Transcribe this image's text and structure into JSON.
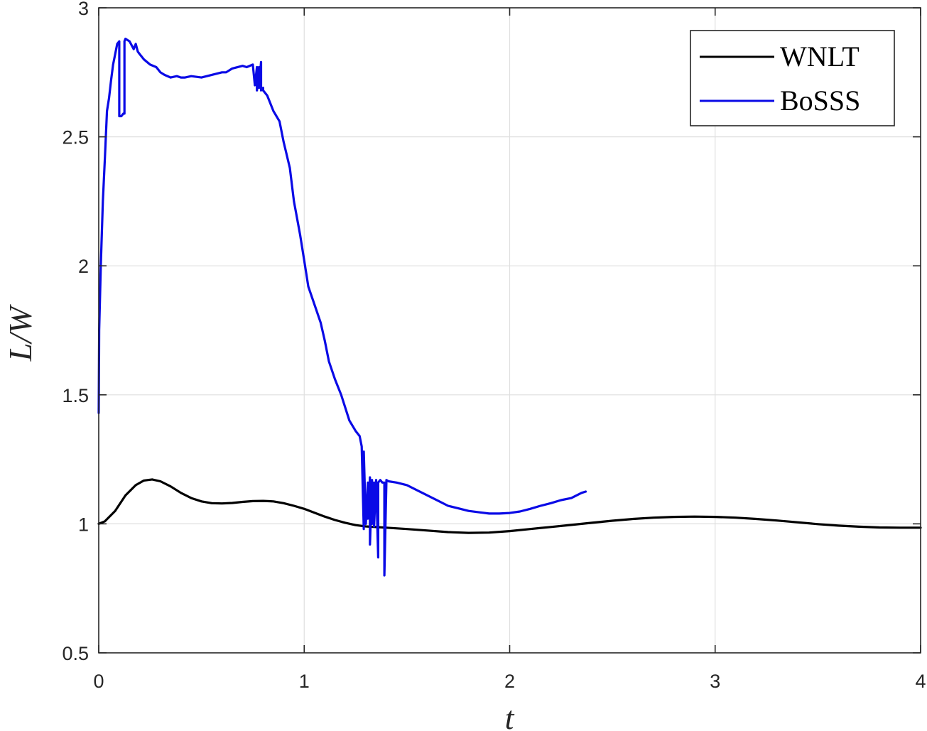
{
  "chart_data": {
    "type": "line",
    "xlabel": "t",
    "ylabel": "L/W",
    "xlim": [
      0,
      4
    ],
    "ylim": [
      0.5,
      3
    ],
    "xticks": [
      "0",
      "1",
      "2",
      "3",
      "4"
    ],
    "yticks": [
      "0.5",
      "1",
      "1.5",
      "2",
      "2.5",
      "3"
    ],
    "grid": true,
    "legend_position": "top-right",
    "series": [
      {
        "name": "WNLT",
        "color": "#000000",
        "x": [
          0,
          0.03,
          0.08,
          0.13,
          0.18,
          0.22,
          0.26,
          0.3,
          0.35,
          0.4,
          0.45,
          0.5,
          0.55,
          0.6,
          0.65,
          0.7,
          0.75,
          0.8,
          0.85,
          0.9,
          0.95,
          1.0,
          1.05,
          1.1,
          1.15,
          1.2,
          1.25,
          1.3,
          1.4,
          1.5,
          1.6,
          1.7,
          1.8,
          1.9,
          2.0,
          2.1,
          2.2,
          2.3,
          2.4,
          2.5,
          2.6,
          2.7,
          2.8,
          2.9,
          3.0,
          3.1,
          3.2,
          3.3,
          3.4,
          3.5,
          3.6,
          3.7,
          3.8,
          3.9,
          4.0
        ],
        "y": [
          1.0,
          1.01,
          1.05,
          1.11,
          1.15,
          1.168,
          1.172,
          1.165,
          1.145,
          1.12,
          1.1,
          1.087,
          1.08,
          1.079,
          1.081,
          1.085,
          1.088,
          1.089,
          1.087,
          1.08,
          1.07,
          1.058,
          1.043,
          1.028,
          1.015,
          1.004,
          0.995,
          0.99,
          0.985,
          0.98,
          0.974,
          0.968,
          0.965,
          0.966,
          0.972,
          0.98,
          0.988,
          0.996,
          1.004,
          1.012,
          1.019,
          1.024,
          1.027,
          1.028,
          1.027,
          1.024,
          1.019,
          1.013,
          1.006,
          0.999,
          0.993,
          0.989,
          0.986,
          0.985,
          0.985
        ]
      },
      {
        "name": "BoSSS",
        "color": "#0a0ae6",
        "x": [
          0.0,
          0.002,
          0.01,
          0.02,
          0.03,
          0.04,
          0.05,
          0.06,
          0.07,
          0.08,
          0.09,
          0.1,
          0.1,
          0.105,
          0.11,
          0.12,
          0.125,
          0.125,
          0.13,
          0.15,
          0.17,
          0.18,
          0.19,
          0.2,
          0.22,
          0.25,
          0.28,
          0.3,
          0.32,
          0.35,
          0.38,
          0.4,
          0.42,
          0.45,
          0.5,
          0.55,
          0.6,
          0.62,
          0.65,
          0.7,
          0.72,
          0.75,
          0.76,
          0.77,
          0.77,
          0.78,
          0.78,
          0.79,
          0.79,
          0.8,
          0.8,
          0.82,
          0.85,
          0.88,
          0.9,
          0.93,
          0.95,
          0.98,
          1.0,
          1.02,
          1.05,
          1.08,
          1.1,
          1.12,
          1.15,
          1.18,
          1.2,
          1.22,
          1.25,
          1.27,
          1.28,
          1.29,
          1.29,
          1.3,
          1.31,
          1.31,
          1.32,
          1.32,
          1.33,
          1.33,
          1.34,
          1.34,
          1.35,
          1.36,
          1.36,
          1.37,
          1.38,
          1.39,
          1.39,
          1.4,
          1.41,
          1.41,
          1.45,
          1.5,
          1.55,
          1.6,
          1.65,
          1.7,
          1.75,
          1.8,
          1.85,
          1.9,
          1.95,
          2.0,
          2.05,
          2.1,
          2.15,
          2.2,
          2.25,
          2.3,
          2.35,
          2.37
        ],
        "y": [
          1.43,
          1.75,
          2.0,
          2.25,
          2.42,
          2.6,
          2.65,
          2.72,
          2.78,
          2.82,
          2.86,
          2.87,
          2.58,
          2.58,
          2.58,
          2.59,
          2.59,
          2.87,
          2.88,
          2.87,
          2.84,
          2.86,
          2.83,
          2.82,
          2.8,
          2.78,
          2.77,
          2.75,
          2.74,
          2.73,
          2.735,
          2.73,
          2.73,
          2.735,
          2.73,
          2.74,
          2.75,
          2.75,
          2.765,
          2.775,
          2.77,
          2.78,
          2.7,
          2.77,
          2.68,
          2.77,
          2.69,
          2.79,
          2.68,
          2.69,
          2.68,
          2.66,
          2.6,
          2.56,
          2.48,
          2.38,
          2.25,
          2.12,
          2.02,
          1.92,
          1.85,
          1.78,
          1.71,
          1.63,
          1.56,
          1.5,
          1.45,
          1.4,
          1.36,
          1.34,
          1.3,
          0.98,
          1.28,
          1.0,
          1.16,
          1.02,
          1.18,
          0.92,
          1.17,
          1.0,
          1.16,
          0.99,
          1.17,
          0.87,
          1.16,
          1.17,
          1.16,
          1.16,
          0.8,
          1.17,
          1.165,
          1.165,
          1.16,
          1.15,
          1.13,
          1.11,
          1.09,
          1.07,
          1.06,
          1.05,
          1.045,
          1.04,
          1.04,
          1.042,
          1.048,
          1.058,
          1.07,
          1.08,
          1.092,
          1.1,
          1.12,
          1.125
        ]
      }
    ]
  }
}
